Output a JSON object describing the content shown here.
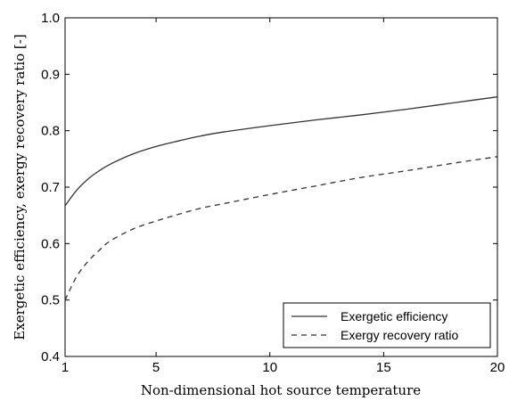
{
  "chart_data": {
    "type": "line",
    "title": "",
    "xlabel": "Non-dimensional hot source temperature",
    "ylabel": "Exergetic efficiency, exergy recovery ratio [-]",
    "xlim": [
      1,
      20
    ],
    "ylim": [
      0.4,
      1.0
    ],
    "xticks": [
      1,
      5,
      10,
      15,
      20
    ],
    "yticks": [
      0.4,
      0.5,
      0.6,
      0.7,
      0.8,
      0.9,
      1.0
    ],
    "xtick_labels": [
      "1",
      "5",
      "10",
      "15",
      "20"
    ],
    "ytick_labels": [
      "0.4",
      "0.5",
      "0.6",
      "0.7",
      "0.8",
      "0.9",
      "1.0"
    ],
    "grid": false,
    "legend_position": "bottom-right",
    "series": [
      {
        "name": "Exergetic efficiency",
        "style": "solid",
        "color": "#333333",
        "x": [
          1,
          1.5,
          2,
          2.5,
          3,
          4,
          5,
          6,
          7,
          8,
          10,
          12,
          14,
          16,
          18,
          20
        ],
        "y": [
          0.667,
          0.694,
          0.714,
          0.729,
          0.741,
          0.759,
          0.772,
          0.782,
          0.791,
          0.798,
          0.809,
          0.819,
          0.828,
          0.838,
          0.849,
          0.86
        ]
      },
      {
        "name": "Exergy recovery ratio",
        "style": "dashed",
        "color": "#333333",
        "x": [
          1,
          1.5,
          2,
          2.5,
          3,
          4,
          5,
          6,
          7,
          8,
          10,
          12,
          14,
          16,
          18,
          20
        ],
        "y": [
          0.5,
          0.541,
          0.568,
          0.588,
          0.605,
          0.626,
          0.64,
          0.652,
          0.663,
          0.671,
          0.687,
          0.702,
          0.717,
          0.729,
          0.742,
          0.754
        ]
      }
    ]
  }
}
